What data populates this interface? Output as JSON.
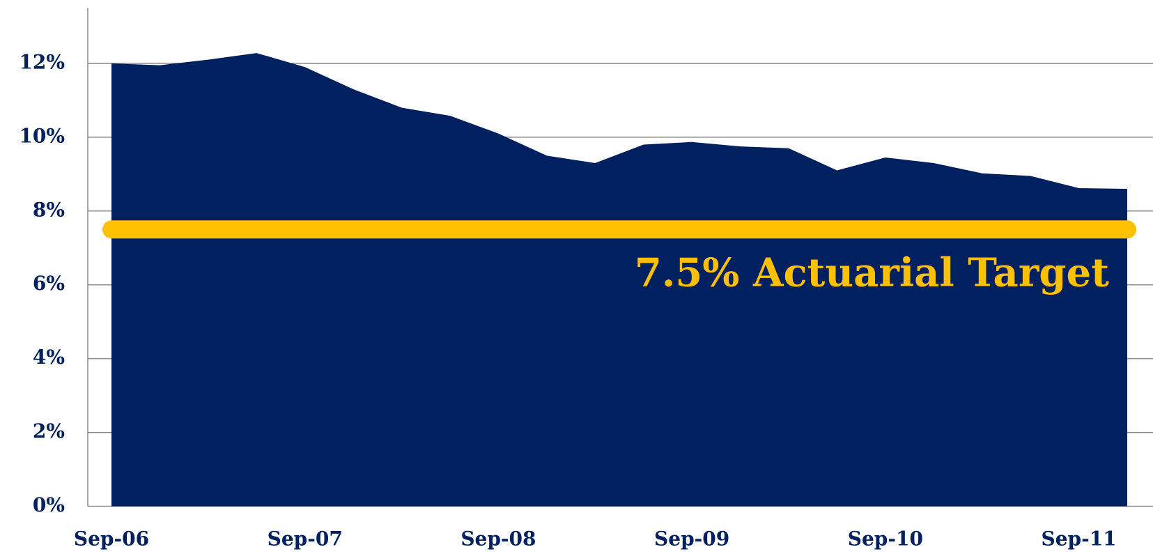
{
  "chart_data": {
    "type": "area",
    "categories": [
      "Sep-06",
      null,
      null,
      null,
      "Sep-07",
      null,
      null,
      null,
      "Sep-08",
      null,
      null,
      null,
      "Sep-09",
      null,
      null,
      null,
      "Sep-10",
      null,
      null,
      null,
      "Sep-11",
      null
    ],
    "series": [
      {
        "color": "#002060",
        "values": [
          12.0,
          11.95,
          12.1,
          12.28,
          11.9,
          11.3,
          10.8,
          10.58,
          10.1,
          9.5,
          9.3,
          9.8,
          9.87,
          9.75,
          9.7,
          9.1,
          9.45,
          9.3,
          9.02,
          8.95,
          8.62,
          8.6
        ]
      }
    ],
    "target": {
      "value": 7.5,
      "color": "#ffc000"
    },
    "annotation": "7.5% Actuarial Target",
    "ylim": [
      0,
      13.5
    ],
    "yticks": [
      {
        "value": 0,
        "label": "0%"
      },
      {
        "value": 2,
        "label": "2%"
      },
      {
        "value": 4,
        "label": "4%"
      },
      {
        "value": 6,
        "label": "6%"
      },
      {
        "value": 8,
        "label": "8%"
      },
      {
        "value": 10,
        "label": "10%"
      },
      {
        "value": 12,
        "label": "12%"
      }
    ],
    "grid": true
  }
}
